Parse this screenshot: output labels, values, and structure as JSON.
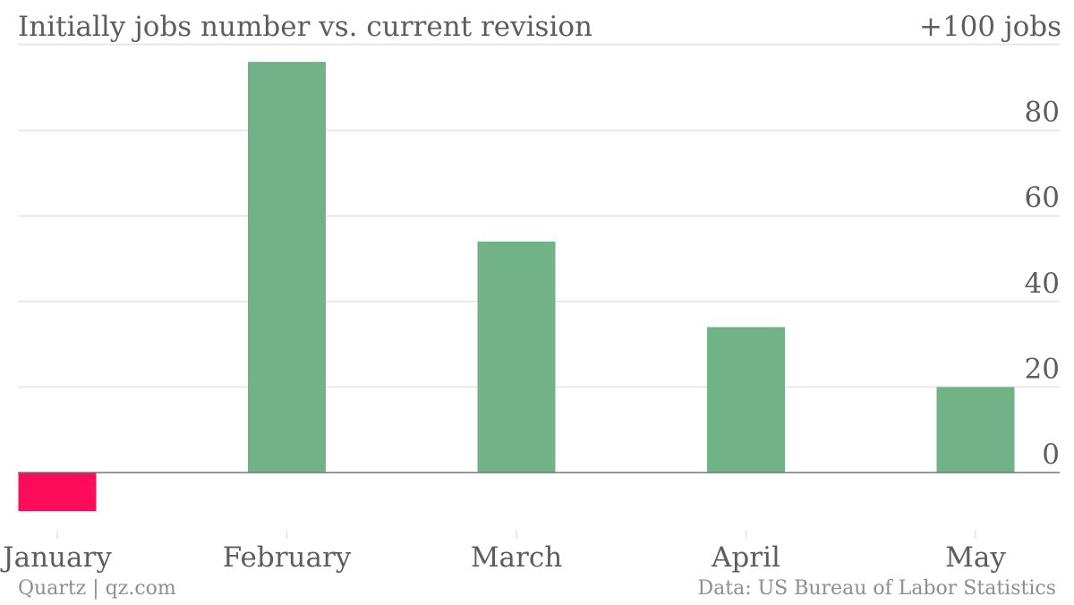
{
  "header": {
    "title": "Initially jobs number vs. current revision",
    "unit_label": "+100 jobs"
  },
  "footer": {
    "source_left": "Quartz | qz.com",
    "source_right": "Data: US Bureau of Labor Statistics"
  },
  "colors": {
    "positive": "#71b287",
    "negative": "#fe0b5b",
    "gridline": "#e3e3e3",
    "zero_line": "#777777",
    "text": "#5d5d5d"
  },
  "chart_data": {
    "type": "bar",
    "title": "Initially jobs number vs. current revision",
    "unit": "+100 jobs",
    "categories": [
      "January",
      "February",
      "March",
      "April",
      "May"
    ],
    "values": [
      -9,
      96,
      54,
      34,
      20
    ],
    "ylim": [
      -9,
      100
    ],
    "yticks": [
      0,
      20,
      40,
      60,
      80
    ],
    "grid": true,
    "y_axis_side": "right"
  }
}
